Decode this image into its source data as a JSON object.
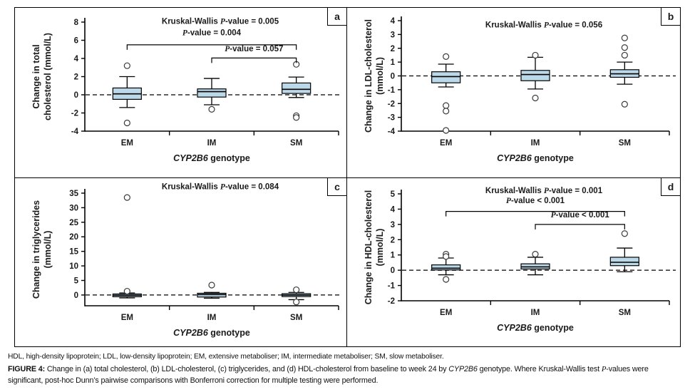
{
  "chart_data": [
    {
      "id": "a",
      "panel_label": "a",
      "type": "box",
      "ylabel_lines": [
        "Change in total",
        "cholesterol (mmol/L)"
      ],
      "xlabel_gene": "CYP2B6",
      "xlabel_rest": " genotype",
      "categories": [
        "EM",
        "IM",
        "SM"
      ],
      "yticks": [
        8,
        6,
        4,
        2,
        0,
        -2,
        -4
      ],
      "ylim": [
        -4,
        8
      ],
      "zero_line": true,
      "kw": {
        "text": "Kruskal-Wallis P-value = 0.005",
        "y": 7.8
      },
      "comparisons": [
        {
          "text": "P-value = 0.004",
          "from": 0,
          "to": 2,
          "bar_y": 5.5,
          "text_y": 6.55
        },
        {
          "text": "P-value = 0.057",
          "from": 1,
          "to": 2,
          "bar_y": 4.05,
          "text_y": 4.8
        }
      ],
      "boxes": [
        {
          "category": "EM",
          "whisker_low": -1.4,
          "q1": -0.5,
          "median": 0.1,
          "q3": 0.75,
          "whisker_high": 2.0,
          "outliers": [
            3.2,
            -3.1
          ]
        },
        {
          "category": "IM",
          "whisker_low": -1.1,
          "q1": -0.25,
          "median": 0.35,
          "q3": 0.65,
          "whisker_high": 1.8,
          "outliers": [
            -1.6
          ]
        },
        {
          "category": "SM",
          "whisker_low": -0.3,
          "q1": 0.15,
          "median": 0.6,
          "q3": 1.3,
          "whisker_high": 1.95,
          "outliers": [
            3.35,
            -2.3,
            -2.5
          ]
        }
      ]
    },
    {
      "id": "b",
      "panel_label": "b",
      "type": "box",
      "ylabel_lines": [
        "Change in LDL-cholesterol",
        "(mmol/L)"
      ],
      "xlabel_gene": "CYP2B6",
      "xlabel_rest": " genotype",
      "categories": [
        "EM",
        "IM",
        "SM"
      ],
      "yticks": [
        4,
        3,
        2,
        1,
        0,
        -1,
        -2,
        -3,
        -4
      ],
      "ylim": [
        -4,
        4
      ],
      "zero_line": true,
      "kw": {
        "text": "Kruskal-Wallis P-value = 0.056",
        "y": 3.5
      },
      "comparisons": [],
      "boxes": [
        {
          "category": "EM",
          "whisker_low": -0.8,
          "q1": -0.5,
          "median": -0.05,
          "q3": 0.3,
          "whisker_high": 0.85,
          "outliers": [
            1.4,
            -2.15,
            -2.55,
            -3.95
          ]
        },
        {
          "category": "IM",
          "whisker_low": -0.95,
          "q1": -0.35,
          "median": 0.1,
          "q3": 0.4,
          "whisker_high": 1.35,
          "outliers": [
            1.5,
            -1.6
          ]
        },
        {
          "category": "SM",
          "whisker_low": -0.6,
          "q1": -0.1,
          "median": 0.15,
          "q3": 0.45,
          "whisker_high": 1.0,
          "outliers": [
            2.75,
            2.05,
            1.5,
            -2.05
          ]
        }
      ]
    },
    {
      "id": "c",
      "panel_label": "c",
      "type": "box",
      "ylabel_lines": [
        "Change in triglycerides",
        "(mmol/L)"
      ],
      "xlabel_gene": "CYP2B6",
      "xlabel_rest": " genotype",
      "categories": [
        "EM",
        "IM",
        "SM"
      ],
      "yticks": [
        35,
        30,
        25,
        20,
        15,
        10,
        5,
        0
      ],
      "ylim": [
        -3.7,
        35
      ],
      "zero_line": true,
      "kw": {
        "text": "Kruskal-Wallis P-value = 0.084",
        "y": 36.4
      },
      "comparisons": [],
      "boxes": [
        {
          "category": "EM",
          "whisker_low": -1.0,
          "q1": -0.6,
          "median": -0.1,
          "q3": 0.35,
          "whisker_high": 0.7,
          "outliers": [
            33.5,
            1.3
          ]
        },
        {
          "category": "IM",
          "whisker_low": -1.1,
          "q1": -0.7,
          "median": 0.15,
          "q3": 0.6,
          "whisker_high": 0.9,
          "outliers": [
            3.4
          ]
        },
        {
          "category": "SM",
          "whisker_low": -1.6,
          "q1": -0.55,
          "median": -0.05,
          "q3": 0.45,
          "whisker_high": 0.9,
          "outliers": [
            1.8,
            -2.4
          ]
        }
      ]
    },
    {
      "id": "d",
      "panel_label": "d",
      "type": "box",
      "ylabel_lines": [
        "Change in HDL-cholesterol",
        "(mmol/L)"
      ],
      "xlabel_gene": "CYP2B6",
      "xlabel_rest": " genotype",
      "categories": [
        "EM",
        "IM",
        "SM"
      ],
      "yticks": [
        5,
        4,
        3,
        2,
        1,
        0,
        -1,
        -2
      ],
      "ylim": [
        -2,
        5
      ],
      "zero_line": true,
      "kw": {
        "text": "Kruskal-Wallis P-value = 0.001",
        "y": 5.05
      },
      "comparisons": [
        {
          "text": "P-value < 0.001",
          "from": 0,
          "to": 2,
          "bar_y": 3.85,
          "text_y": 4.4
        },
        {
          "text": "P-value < 0.001",
          "from": 1,
          "to": 2,
          "bar_y": 3.0,
          "text_y": 3.45
        }
      ],
      "boxes": [
        {
          "category": "EM",
          "whisker_low": -0.3,
          "q1": 0.02,
          "median": 0.13,
          "q3": 0.35,
          "whisker_high": 0.8,
          "outliers": [
            1.05,
            0.9,
            -0.6
          ]
        },
        {
          "category": "IM",
          "whisker_low": -0.3,
          "q1": 0.08,
          "median": 0.22,
          "q3": 0.42,
          "whisker_high": 0.85,
          "outliers": [
            1.05
          ]
        },
        {
          "category": "SM",
          "whisker_low": -0.1,
          "q1": 0.3,
          "median": 0.52,
          "q3": 0.85,
          "whisker_high": 1.45,
          "outliers": [
            2.4
          ]
        }
      ]
    }
  ],
  "colors": {
    "box_fill": "#bcd9ea",
    "box_stroke": "#000000",
    "axis": "#000000",
    "dashed_line": "#000000",
    "outlier_stroke": "#3a3a3a",
    "text": "#1a1a1a"
  },
  "footnote": "HDL, high-density lipoprotein; LDL, low-density lipoprotein; EM, extensive metaboliser; IM, intermediate metaboliser; SM, slow metaboliser.",
  "caption": {
    "label": "FIGURE 4:",
    "text_before_gene": "Change in (a) total cholesterol, (b) LDL-cholesterol, (c) triglycerides, and (d) HDL-cholesterol from baseline to week 24 by ",
    "gene": "CYP2B6",
    "text_after_gene": " genotype. Where Kruskal-Wallis test P-values were significant, post-hoc Dunn’s pairwise comparisons with Bonferroni correction for multiple testing were performed."
  }
}
